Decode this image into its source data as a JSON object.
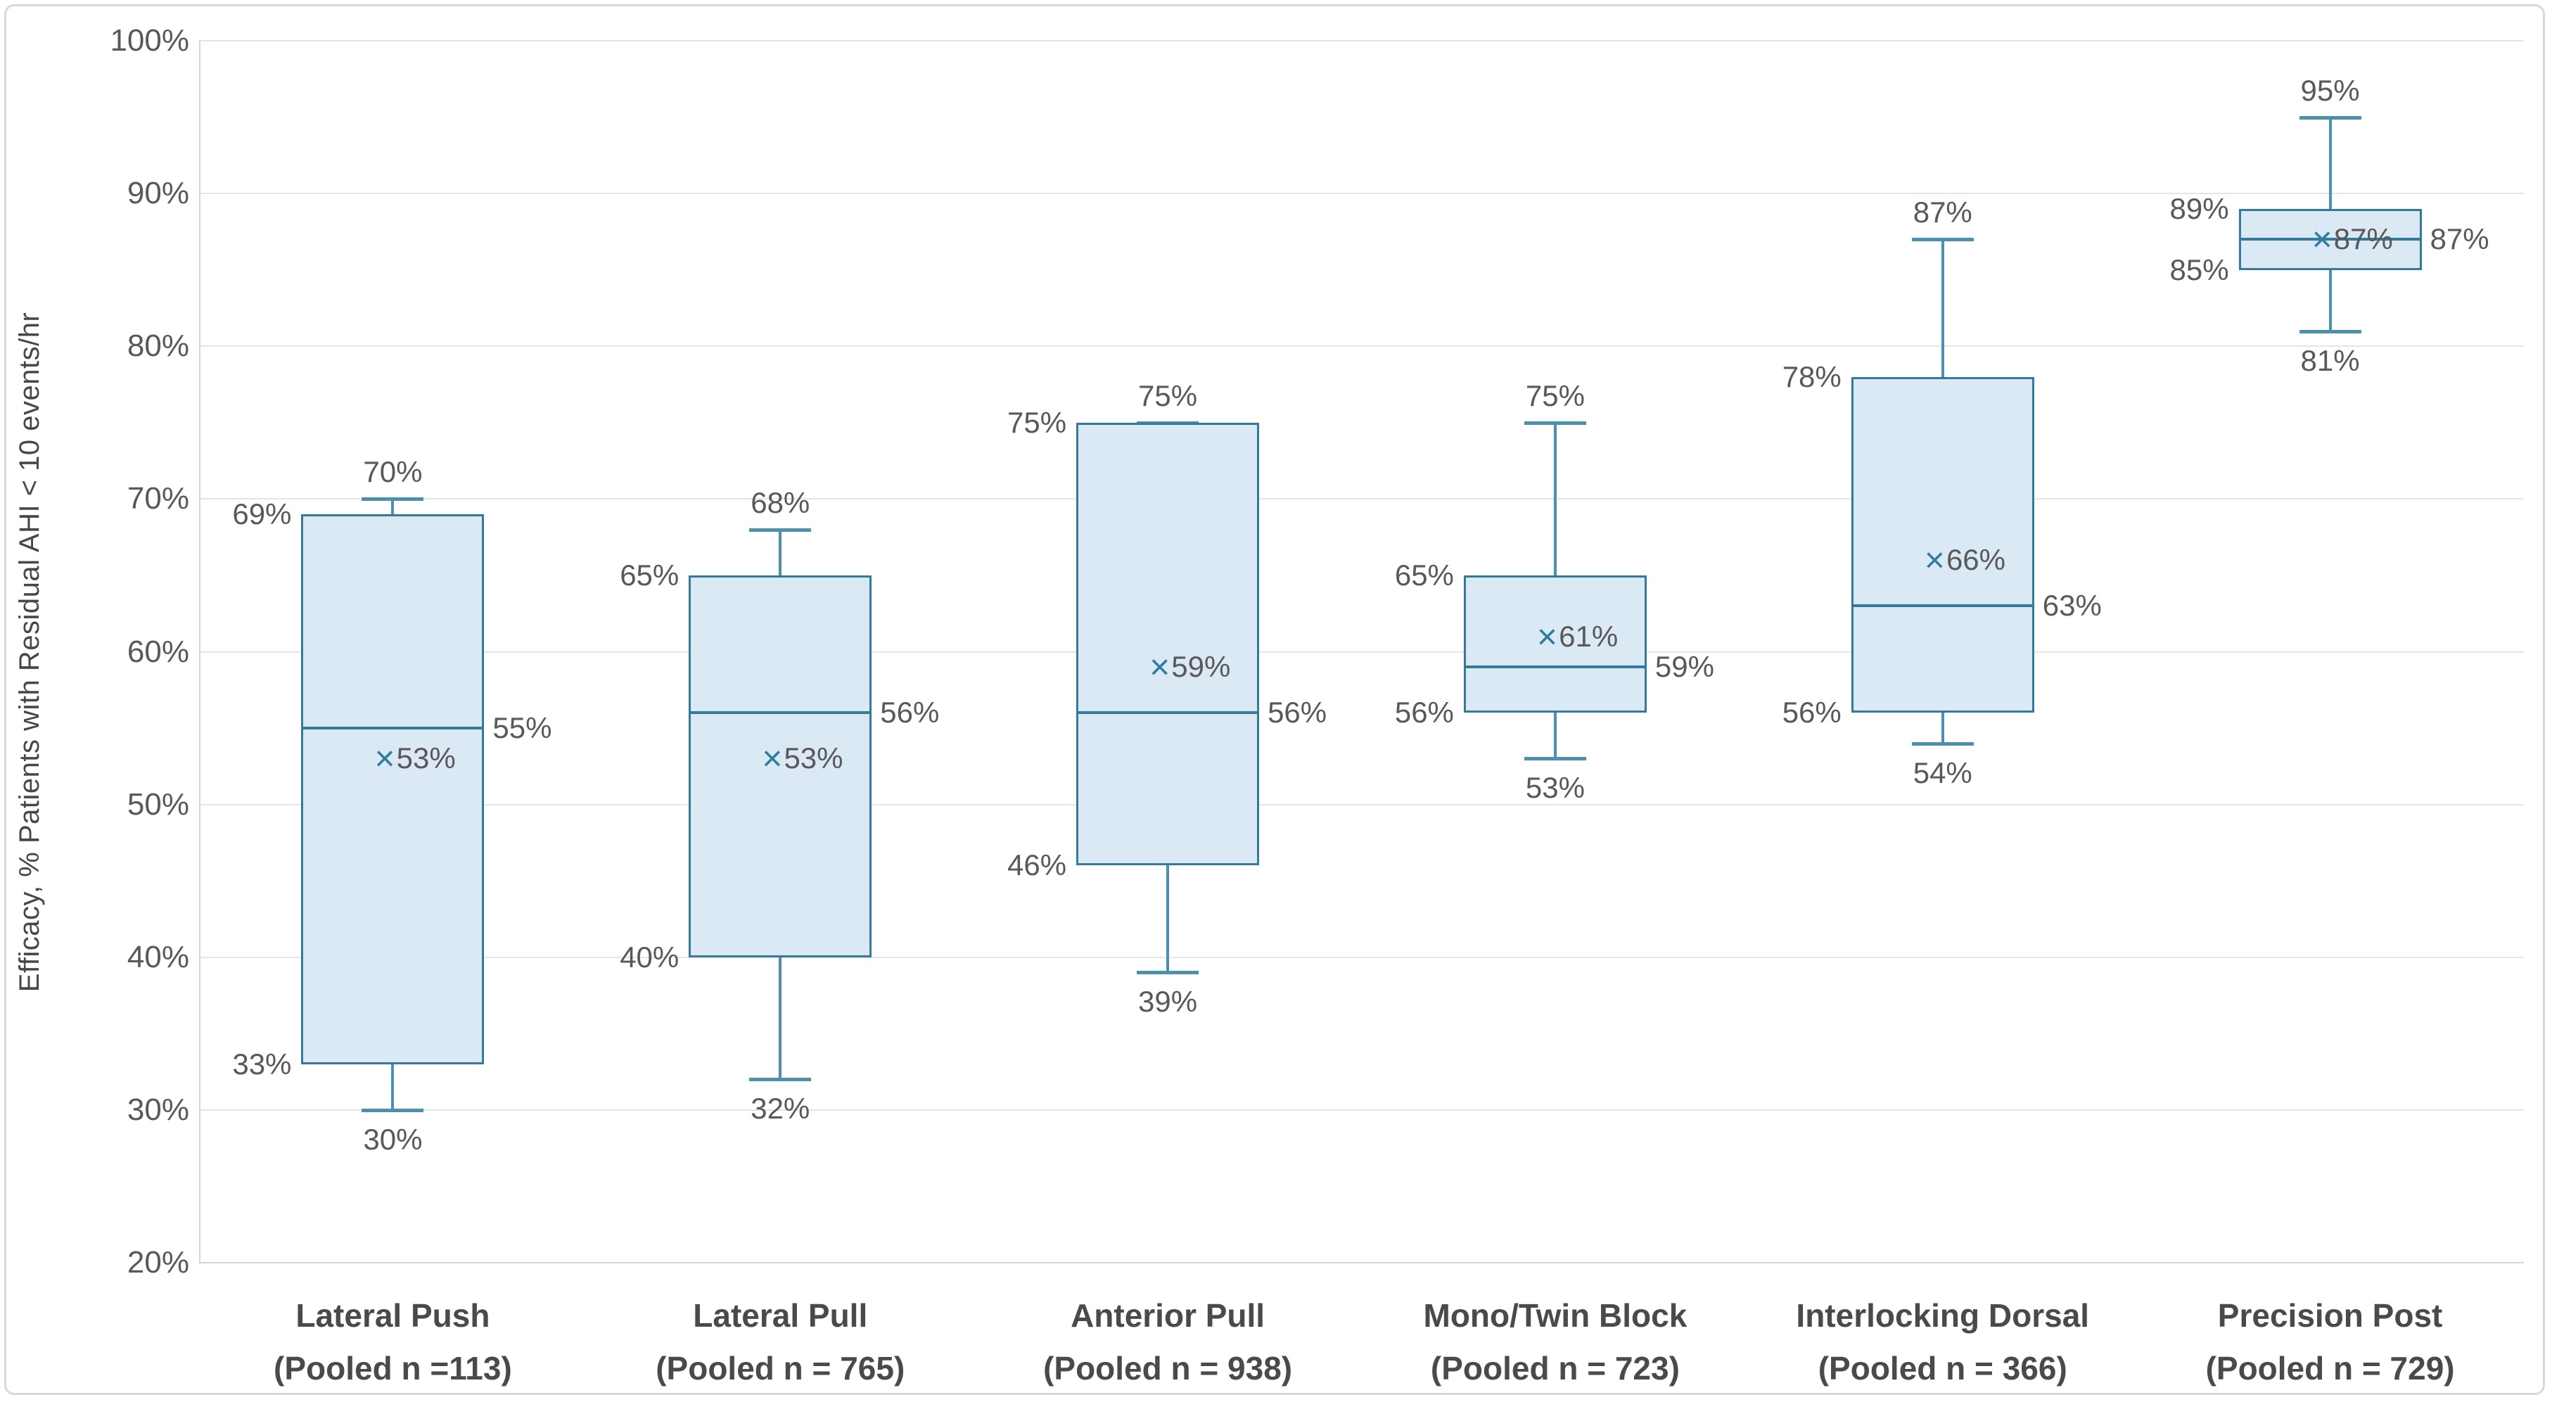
{
  "chart_data": {
    "type": "box",
    "title": "",
    "ylabel": "Efficacy, % Patients with Residual AHI < 10 events/hr",
    "xlabel": "",
    "ylim": [
      20,
      100
    ],
    "ytick_values": [
      100,
      90,
      80,
      70,
      60,
      50,
      40,
      30,
      20
    ],
    "ytick_labels": [
      "100%",
      "90%",
      "80%",
      "70%",
      "60%",
      "50%",
      "40%",
      "30%",
      "20%"
    ],
    "grid": "horizontal",
    "legend": "none",
    "mean_marker_glyph": "×",
    "categories": [
      {
        "line1": "Lateral Push",
        "line2": "(Pooled n =113)"
      },
      {
        "line1": "Lateral Pull",
        "line2": "(Pooled n = 765)"
      },
      {
        "line1": "Anterior Pull",
        "line2": "(Pooled n = 938)"
      },
      {
        "line1": "Mono/Twin Block",
        "line2": "(Pooled n = 723)"
      },
      {
        "line1": "Interlocking Dorsal",
        "line2": "(Pooled n = 366)"
      },
      {
        "line1": "Precision Post",
        "line2": "(Pooled n = 729)"
      }
    ],
    "series": [
      {
        "category": "Lateral Push",
        "pooled_n": 113,
        "whisker_low": 30,
        "q1": 33,
        "median": 55,
        "mean": 53,
        "q3": 69,
        "whisker_high": 70,
        "labels": {
          "whisker_low": "30%",
          "q1": "33%",
          "median": "55%",
          "mean": "53%",
          "q3": "69%",
          "whisker_high": "70%"
        }
      },
      {
        "category": "Lateral Pull",
        "pooled_n": 765,
        "whisker_low": 32,
        "q1": 40,
        "median": 56,
        "mean": 53,
        "q3": 65,
        "whisker_high": 68,
        "labels": {
          "whisker_low": "32%",
          "q1": "40%",
          "median": "56%",
          "mean": "53%",
          "q3": "65%",
          "whisker_high": "68%"
        }
      },
      {
        "category": "Anterior Pull",
        "pooled_n": 938,
        "whisker_low": 39,
        "q1": 46,
        "median": 56,
        "mean": 59,
        "q3": 75,
        "whisker_high": 75,
        "labels": {
          "whisker_low": "39%",
          "q1": "46%",
          "median": "56%",
          "mean": "59%",
          "q3": "75%",
          "whisker_high": "75%"
        }
      },
      {
        "category": "Mono/Twin Block",
        "pooled_n": 723,
        "whisker_low": 53,
        "q1": 56,
        "median": 59,
        "mean": 61,
        "q3": 65,
        "whisker_high": 75,
        "labels": {
          "whisker_low": "53%",
          "q1": "56%",
          "median": "59%",
          "mean": "61%",
          "q3": "65%",
          "whisker_high": "75%"
        }
      },
      {
        "category": "Interlocking Dorsal",
        "pooled_n": 366,
        "whisker_low": 54,
        "q1": 56,
        "median": 63,
        "mean": 66,
        "q3": 78,
        "whisker_high": 87,
        "labels": {
          "whisker_low": "54%",
          "q1": "56%",
          "median": "63%",
          "mean": "66%",
          "q3": "78%",
          "whisker_high": "87%"
        }
      },
      {
        "category": "Precision Post",
        "pooled_n": 729,
        "whisker_low": 81,
        "q1": 85,
        "median": 87,
        "mean": 87,
        "q3": 89,
        "whisker_high": 95,
        "labels": {
          "whisker_low": "81%",
          "q1": "85%",
          "median": "87%",
          "mean": "87%",
          "q3": "89%",
          "whisker_high": "95%"
        }
      }
    ],
    "colors": {
      "box_fill": "#dbe9f5",
      "box_border": "#35799b",
      "whisker": "#4b90ad",
      "mean_marker": "#2f7e9e",
      "data_label_text": "#595959",
      "category_text": "#4a4a4a",
      "gridline": "#e5e5e5",
      "axis_line": "#d6d6d6",
      "frame_border": "#d8d8d8",
      "background": "#ffffff"
    }
  }
}
